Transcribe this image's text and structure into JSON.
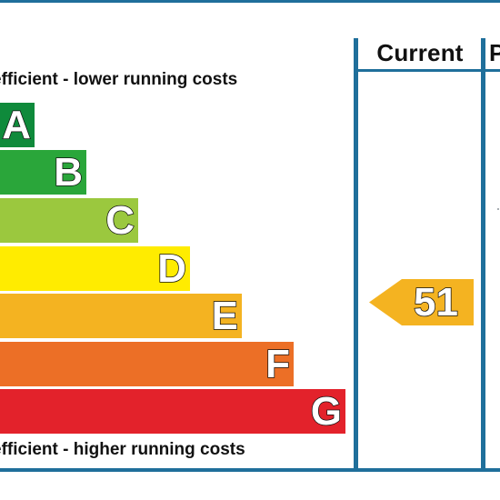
{
  "header": {
    "current_label": "Current",
    "next_label": "P"
  },
  "captions": {
    "top": "efficient - lower running costs",
    "bottom": "efficient - higher running costs"
  },
  "bands": [
    {
      "letter": "A",
      "color": "#0f8a3b"
    },
    {
      "letter": "B",
      "color": "#2aa63a"
    },
    {
      "letter": "C",
      "color": "#9bc83e"
    },
    {
      "letter": "D",
      "color": "#ffec00"
    },
    {
      "letter": "E",
      "color": "#f4b321"
    },
    {
      "letter": "F",
      "color": "#ec6f26"
    },
    {
      "letter": "G",
      "color": "#e3222b"
    }
  ],
  "current_rating": {
    "value": "51",
    "band": "E",
    "color": "#f4b321"
  },
  "colors": {
    "frame": "#1f6f9b"
  }
}
